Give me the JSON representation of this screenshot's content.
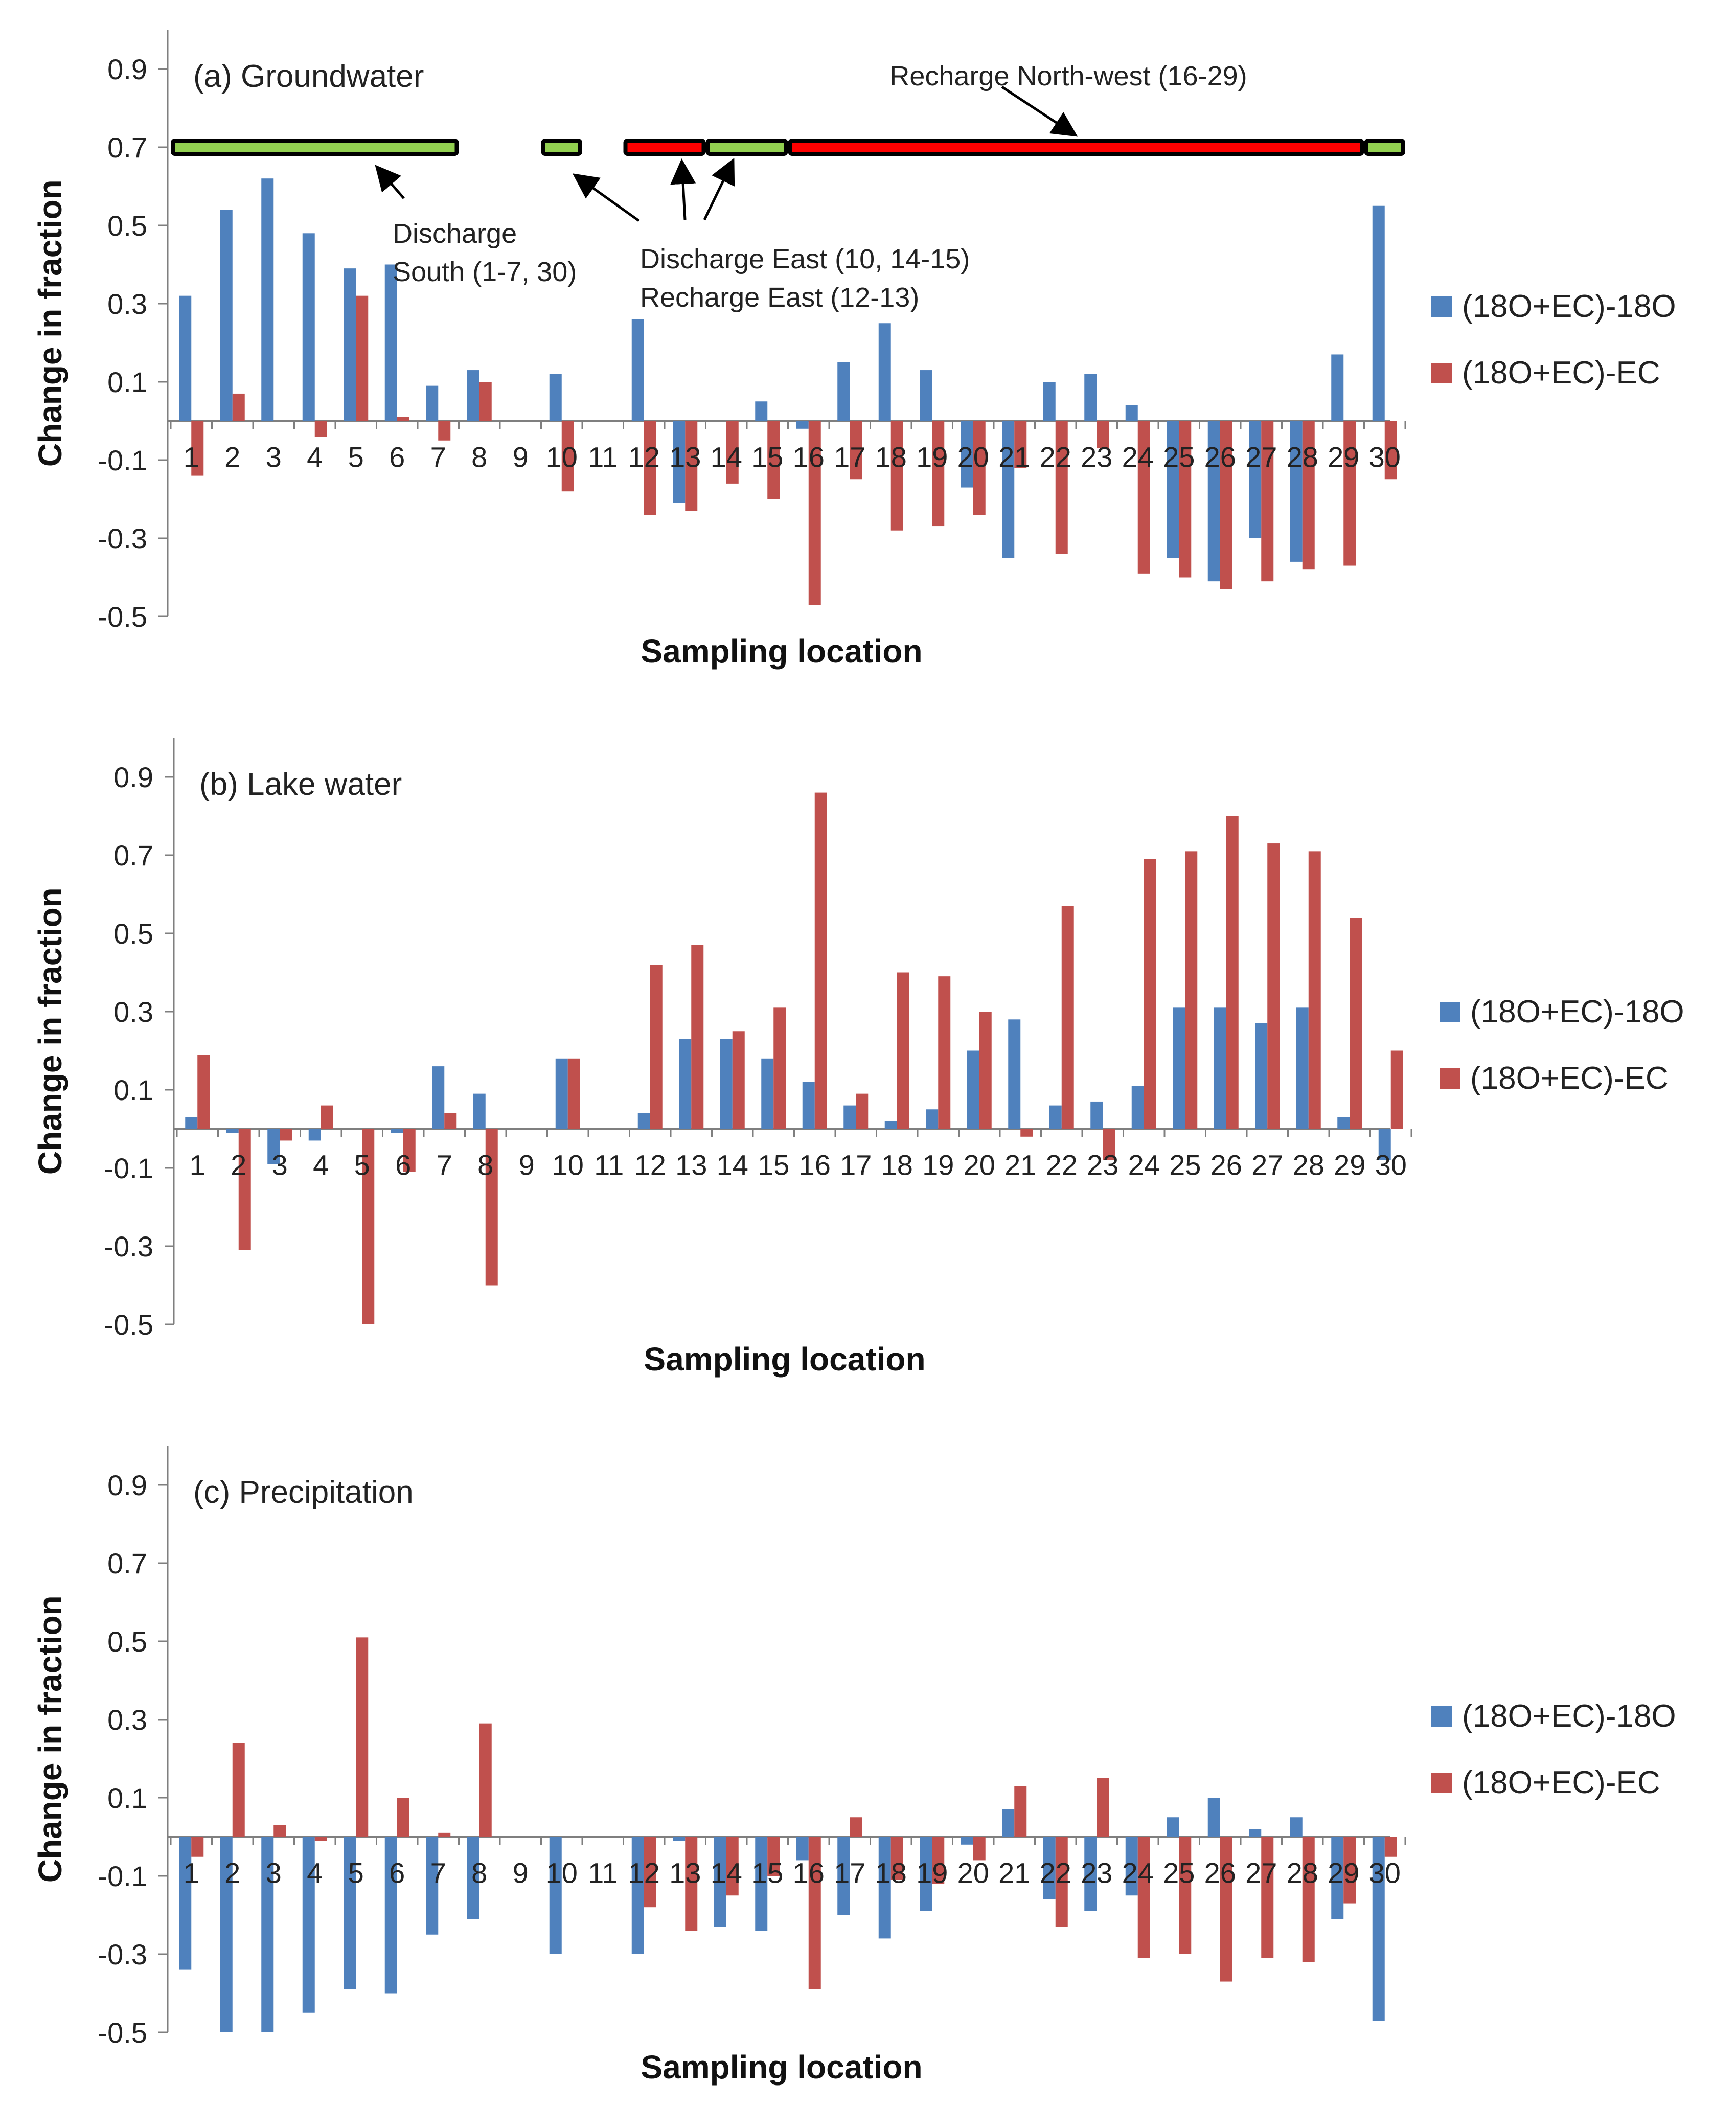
{
  "colors": {
    "series_18O": "#4F81BD",
    "series_EC": "#C0504D",
    "discharge_fill": "#92D050",
    "recharge_fill": "#FF0000",
    "axis": "#7F7F7F"
  },
  "chart_data": [
    {
      "type": "bar",
      "title": "(a) Groundwater",
      "xlabel": "Sampling location",
      "ylabel": "Change in fraction",
      "ylim": [
        -0.5,
        1.0
      ],
      "yticks": [
        "0.9",
        "0.7",
        "0.5",
        "0.3",
        "0.1",
        "-0.1",
        "-0.3",
        "-0.5"
      ],
      "categories": [
        "1",
        "2",
        "3",
        "4",
        "5",
        "6",
        "7",
        "8",
        "9",
        "10",
        "11",
        "12",
        "13",
        "14",
        "15",
        "16",
        "17",
        "18",
        "19",
        "20",
        "21",
        "22",
        "23",
        "24",
        "25",
        "26",
        "27",
        "28",
        "29",
        "30"
      ],
      "series": [
        {
          "name": "(18O+EC)-18O",
          "values": [
            0.32,
            0.54,
            0.62,
            0.48,
            0.39,
            0.4,
            0.09,
            0.13,
            0,
            0.12,
            0,
            0.26,
            -0.21,
            0,
            0.05,
            -0.02,
            0.15,
            0.25,
            0.13,
            -0.17,
            -0.35,
            0.1,
            0.12,
            0.04,
            -0.35,
            -0.41,
            -0.3,
            -0.36,
            0.17,
            0.55
          ]
        },
        {
          "name": "(18O+EC)-EC",
          "values": [
            -0.14,
            0.07,
            0,
            -0.04,
            0.32,
            0.01,
            -0.05,
            0.1,
            0,
            -0.18,
            0,
            -0.24,
            -0.23,
            -0.16,
            -0.2,
            -0.47,
            -0.15,
            -0.28,
            -0.27,
            -0.24,
            -0.12,
            -0.34,
            -0.07,
            -0.39,
            -0.4,
            -0.43,
            -0.41,
            -0.38,
            -0.37,
            -0.15
          ]
        }
      ],
      "legend": {
        "position": "right",
        "entries": [
          "(18O+EC)-18O",
          "(18O+EC)-EC"
        ]
      },
      "annotations": {
        "recharge_nw": "Recharge North-west (16-29)",
        "discharge_south_1": "Discharge",
        "discharge_south_2": "South (1-7, 30)",
        "east_1": "Discharge East (10, 14-15)",
        "east_2": "Recharge East (12-13)"
      },
      "zone_bars": [
        {
          "type": "discharge",
          "start": 1,
          "end": 7
        },
        {
          "type": "discharge",
          "start": 10,
          "end": 10
        },
        {
          "type": "recharge",
          "start": 12,
          "end": 13
        },
        {
          "type": "discharge",
          "start": 14,
          "end": 15
        },
        {
          "type": "recharge",
          "start": 16,
          "end": 29
        },
        {
          "type": "discharge",
          "start": 30,
          "end": 30
        }
      ]
    },
    {
      "type": "bar",
      "title": "(b) Lake water",
      "xlabel": "Sampling location",
      "ylabel": "Change in fraction",
      "ylim": [
        -0.5,
        1.0
      ],
      "yticks": [
        "0.9",
        "0.7",
        "0.5",
        "0.3",
        "0.1",
        "-0.1",
        "-0.3",
        "-0.5"
      ],
      "categories": [
        "1",
        "2",
        "3",
        "4",
        "5",
        "6",
        "7",
        "8",
        "9",
        "10",
        "11",
        "12",
        "13",
        "14",
        "15",
        "16",
        "17",
        "18",
        "19",
        "20",
        "21",
        "22",
        "23",
        "24",
        "25",
        "26",
        "27",
        "28",
        "29",
        "30"
      ],
      "series": [
        {
          "name": "(18O+EC)-18O",
          "values": [
            0.03,
            -0.01,
            -0.09,
            -0.03,
            0,
            -0.01,
            0.16,
            0.09,
            0,
            0.18,
            0,
            0.04,
            0.23,
            0.23,
            0.18,
            0.12,
            0.06,
            0.02,
            0.05,
            0.2,
            0.28,
            0.06,
            0.07,
            0.11,
            0.31,
            0.31,
            0.27,
            0.31,
            0.03,
            -0.08
          ]
        },
        {
          "name": "(18O+EC)-EC",
          "values": [
            0.19,
            -0.31,
            -0.03,
            0.06,
            -0.5,
            -0.11,
            0.04,
            -0.4,
            0,
            0.18,
            0,
            0.42,
            0.47,
            0.25,
            0.31,
            0.86,
            0.09,
            0.4,
            0.39,
            0.3,
            -0.02,
            0.57,
            -0.08,
            0.69,
            0.71,
            0.8,
            0.73,
            0.71,
            0.54,
            0.2
          ]
        }
      ],
      "legend": {
        "position": "right",
        "entries": [
          "(18O+EC)-18O",
          "(18O+EC)-EC"
        ]
      }
    },
    {
      "type": "bar",
      "title": "(c) Precipitation",
      "xlabel": "Sampling location",
      "ylabel": "Change in fraction",
      "ylim": [
        -0.5,
        1.0
      ],
      "yticks": [
        "0.9",
        "0.7",
        "0.5",
        "0.3",
        "0.1",
        "-0.1",
        "-0.3",
        "-0.5"
      ],
      "categories": [
        "1",
        "2",
        "3",
        "4",
        "5",
        "6",
        "7",
        "8",
        "9",
        "10",
        "11",
        "12",
        "13",
        "14",
        "15",
        "16",
        "17",
        "18",
        "19",
        "20",
        "21",
        "22",
        "23",
        "24",
        "25",
        "26",
        "27",
        "28",
        "29",
        "30"
      ],
      "series": [
        {
          "name": "(18O+EC)-18O",
          "values": [
            -0.34,
            -0.5,
            -0.5,
            -0.45,
            -0.39,
            -0.4,
            -0.25,
            -0.21,
            0,
            -0.3,
            0,
            -0.3,
            -0.01,
            -0.23,
            -0.24,
            -0.06,
            -0.2,
            -0.26,
            -0.19,
            -0.02,
            0.07,
            -0.16,
            -0.19,
            -0.15,
            0.05,
            0.1,
            0.02,
            0.05,
            -0.21,
            -0.47
          ]
        },
        {
          "name": "(18O+EC)-EC",
          "values": [
            -0.05,
            0.24,
            0.03,
            -0.01,
            0.51,
            0.1,
            0.01,
            0.29,
            0,
            0,
            0,
            -0.18,
            -0.24,
            -0.15,
            -0.1,
            -0.39,
            0.05,
            -0.11,
            -0.12,
            -0.06,
            0.13,
            -0.23,
            0.15,
            -0.31,
            -0.3,
            -0.37,
            -0.31,
            -0.32,
            -0.17,
            -0.05
          ]
        }
      ],
      "legend": {
        "position": "right",
        "entries": [
          "(18O+EC)-18O",
          "(18O+EC)-EC"
        ]
      }
    }
  ]
}
